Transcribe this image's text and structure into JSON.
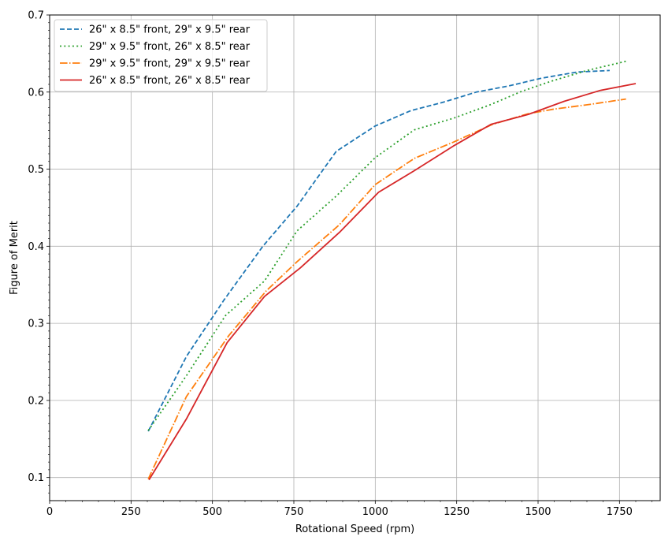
{
  "chart_data": {
    "type": "line",
    "title": "",
    "xlabel": "Rotational Speed (rpm)",
    "ylabel": "Figure of Merit",
    "xlim": [
      0,
      1875
    ],
    "ylim": [
      0.07,
      0.7
    ],
    "xticks": [
      0,
      250,
      500,
      750,
      1000,
      1250,
      1500,
      1750
    ],
    "yticks": [
      0.1,
      0.2,
      0.3,
      0.4,
      0.5,
      0.6,
      0.7
    ],
    "xtick_labels": [
      "0",
      "250",
      "500",
      "750",
      "1000",
      "1250",
      "1500",
      "1750"
    ],
    "ytick_labels": [
      "0.1",
      "0.2",
      "0.3",
      "0.4",
      "0.5",
      "0.6",
      "0.7"
    ],
    "grid": true,
    "legend_position": "top-left",
    "series": [
      {
        "name": "26\" x 8.5\" front, 29\" x 9.5\" rear",
        "color": "#1f77b4",
        "linestyle": "dashed",
        "x": [
          303,
          420,
          535,
          655,
          760,
          880,
          1000,
          1110,
          1210,
          1310,
          1410,
          1510,
          1620,
          1720
        ],
        "y": [
          0.16,
          0.257,
          0.33,
          0.4,
          0.452,
          0.523,
          0.556,
          0.576,
          0.587,
          0.6,
          0.608,
          0.618,
          0.626,
          0.628
        ]
      },
      {
        "name": "29\" x 9.5\" front, 26\" x 8.5\" rear",
        "color": "#2ca02c",
        "linestyle": "dotted",
        "x": [
          303,
          420,
          540,
          660,
          760,
          880,
          1000,
          1120,
          1240,
          1350,
          1450,
          1540,
          1650,
          1770
        ],
        "y": [
          0.161,
          0.232,
          0.31,
          0.355,
          0.42,
          0.465,
          0.515,
          0.551,
          0.566,
          0.583,
          0.601,
          0.614,
          0.628,
          0.64
        ]
      },
      {
        "name": "29\" x 9.5\" front, 29\" x 9.5\" rear",
        "color": "#ff7f0e",
        "linestyle": "dashdot",
        "x": [
          303,
          420,
          550,
          665,
          760,
          890,
          1000,
          1120,
          1240,
          1360,
          1470,
          1550,
          1660,
          1770
        ],
        "y": [
          0.098,
          0.205,
          0.284,
          0.342,
          0.38,
          0.428,
          0.48,
          0.514,
          0.535,
          0.558,
          0.572,
          0.578,
          0.584,
          0.591
        ]
      },
      {
        "name": "26\" x 8.5\" front, 26\" x 8.5\" rear",
        "color": "#d62728",
        "linestyle": "solid",
        "x": [
          305,
          420,
          545,
          660,
          770,
          890,
          1010,
          1120,
          1240,
          1355,
          1470,
          1580,
          1690,
          1800
        ],
        "y": [
          0.097,
          0.176,
          0.275,
          0.335,
          0.372,
          0.418,
          0.47,
          0.498,
          0.53,
          0.558,
          0.571,
          0.588,
          0.602,
          0.611
        ]
      }
    ]
  }
}
